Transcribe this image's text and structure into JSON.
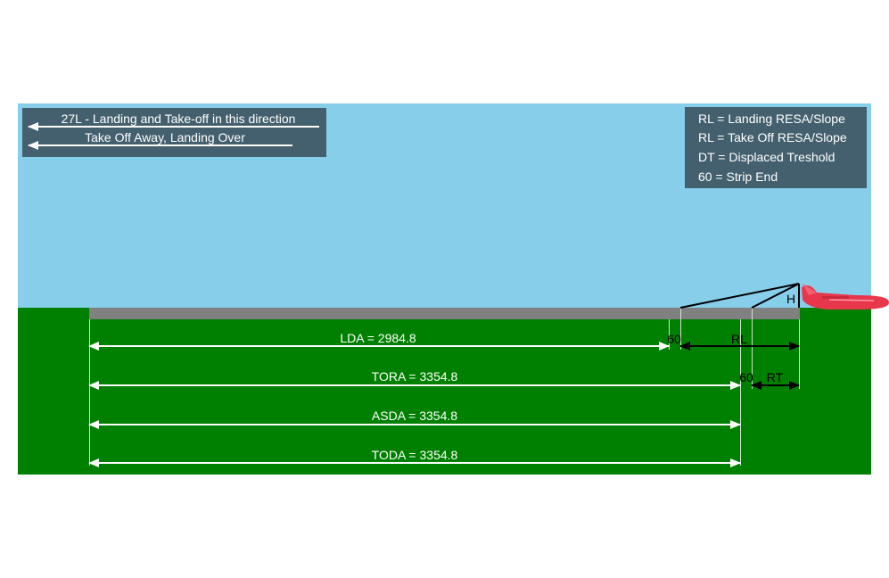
{
  "direction_panel": {
    "line1": "27L - Landing and Take-off in this direction",
    "line2": "Take Off Away, Landing Over"
  },
  "legend_panel": {
    "items": [
      "RL = Landing RESA/Slope",
      "RL = Take Off RESA/Slope",
      "DT = Displaced Treshold",
      "60 = Strip End"
    ]
  },
  "labels": {
    "lda": "LDA = 2984.8",
    "tora": "TORA = 3354.8",
    "asda": "ASDA = 3354.8",
    "toda": "TODA = 3354.8",
    "strip_end_landing": "60",
    "rl": "RL",
    "strip_end_takeoff": "60",
    "rt": "RT",
    "obstacle_height": "H"
  },
  "distances": {
    "LDA": 2984.8,
    "TORA": 3354.8,
    "ASDA": 3354.8,
    "TODA": 3354.8
  },
  "colors": {
    "sky": "#87ceeb",
    "ground": "#008000",
    "runway": "#808080",
    "panel": "#44606e",
    "arrow_white": "#ffffff",
    "arrow_black": "#000000",
    "aircraft": "#e8364a"
  }
}
